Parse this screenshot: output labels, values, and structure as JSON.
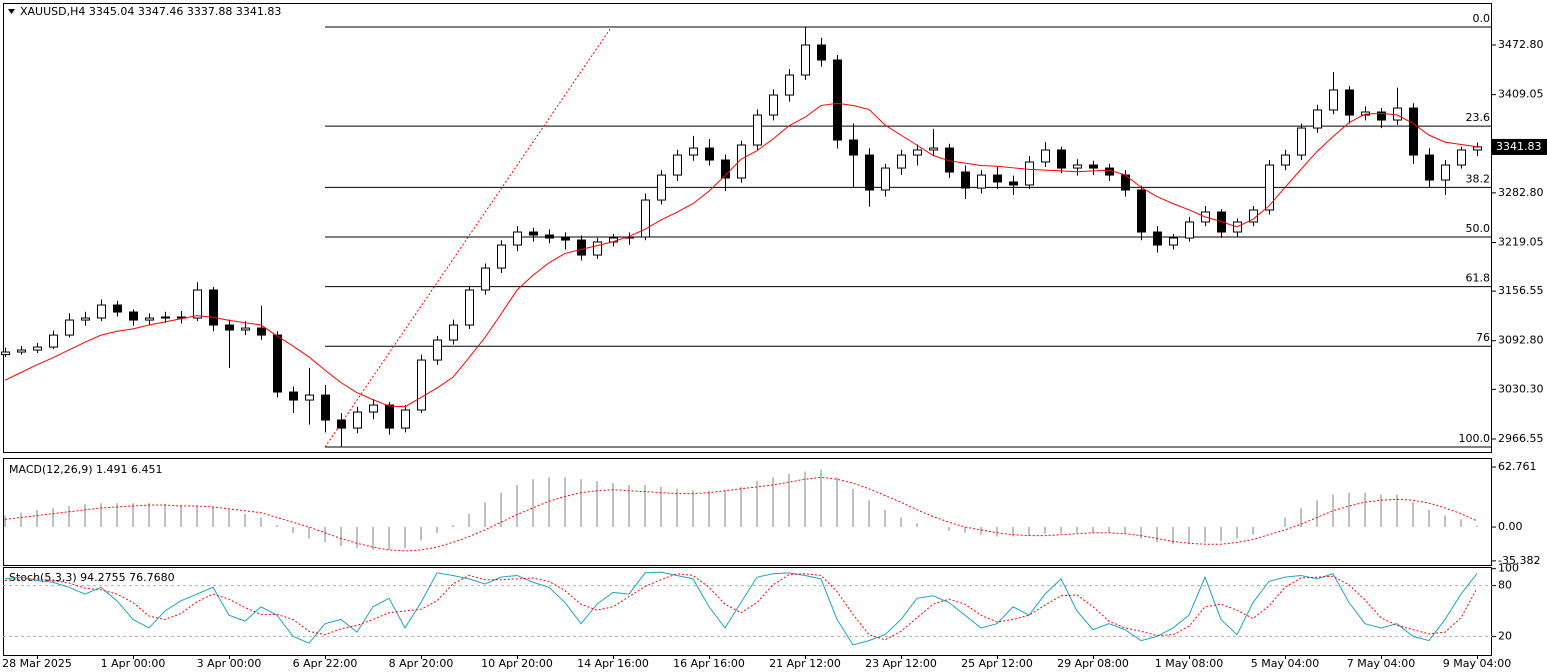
{
  "chart_data": [
    {
      "type": "candlestick",
      "title": "XAUUSD,H4  3345.04 3347.46 3337.88 3341.83",
      "categories": [
        null,
        null,
        "28 Mar 2025",
        null,
        null,
        null,
        null,
        null,
        "1 Apr 00:00",
        null,
        null,
        null,
        null,
        null,
        "3 Apr 00:00",
        null,
        null,
        null,
        null,
        null,
        "6 Apr 22:00",
        null,
        null,
        null,
        null,
        null,
        "8 Apr 20:00",
        null,
        null,
        null,
        null,
        null,
        "10 Apr 20:00",
        null,
        null,
        null,
        null,
        null,
        "14 Apr 16:00",
        null,
        null,
        null,
        null,
        null,
        "16 Apr 16:00",
        null,
        null,
        null,
        null,
        null,
        "21 Apr 12:00",
        null,
        null,
        null,
        null,
        null,
        "23 Apr 12:00",
        null,
        null,
        null,
        null,
        null,
        "25 Apr 12:00",
        null,
        null,
        null,
        null,
        null,
        "29 Apr 08:00",
        null,
        null,
        null,
        null,
        null,
        "1 May 08:00",
        null,
        null,
        null,
        null,
        null,
        "5 May 04:00",
        null,
        null,
        null,
        null,
        null,
        "7 May 04:00",
        null,
        null,
        null,
        null,
        null,
        "9 May 04:00"
      ],
      "candles": [
        [
          3075,
          3084,
          3072,
          3078.3
        ],
        [
          3078.3,
          3086,
          3075,
          3080.9
        ],
        [
          3080.9,
          3090,
          3077,
          3084.7
        ],
        [
          3084.7,
          3106,
          3082,
          3100.1
        ],
        [
          3100.1,
          3128,
          3097,
          3119.4
        ],
        [
          3119.4,
          3130,
          3112,
          3122.0
        ],
        [
          3122.0,
          3146,
          3118,
          3138.7
        ],
        [
          3138.7,
          3144,
          3124,
          3129.7
        ],
        [
          3129.7,
          3133,
          3112,
          3119.4
        ],
        [
          3119.4,
          3128,
          3113,
          3122.0
        ],
        [
          3122.0,
          3130,
          3116,
          3123.3
        ],
        [
          3123.3,
          3131,
          3115,
          3122.0
        ],
        [
          3122.0,
          3168,
          3118,
          3158.0
        ],
        [
          3158.0,
          3162,
          3105,
          3113.0
        ],
        [
          3113.0,
          3120,
          3058,
          3106.6
        ],
        [
          3106.6,
          3118,
          3100,
          3109.1
        ],
        [
          3109.1,
          3138,
          3094,
          3100.1
        ],
        [
          3100.1,
          3105,
          3020,
          3026.9
        ],
        [
          3026.9,
          3034,
          3000,
          3016.6
        ],
        [
          3016.6,
          3058,
          2985,
          3023.0
        ],
        [
          3023.0,
          3036,
          2975,
          2990.9
        ],
        [
          2990.9,
          3000,
          2957,
          2980.6
        ],
        [
          2980.6,
          3008,
          2974,
          3001.2
        ],
        [
          3001.2,
          3018,
          2992,
          3010.2
        ],
        [
          3010.2,
          3014,
          2972,
          2980.6
        ],
        [
          2980.6,
          3010,
          2975,
          3003.8
        ],
        [
          3003.8,
          3075,
          3000,
          3068.0
        ],
        [
          3068.0,
          3099,
          3062,
          3093.7
        ],
        [
          3093.7,
          3120,
          3088,
          3113.0
        ],
        [
          3113.0,
          3162,
          3108,
          3158.0
        ],
        [
          3158.0,
          3192,
          3152,
          3186.2
        ],
        [
          3186.2,
          3222,
          3180,
          3215.8
        ],
        [
          3215.8,
          3240,
          3208,
          3232.5
        ],
        [
          3232.5,
          3238,
          3220,
          3228.6
        ],
        [
          3228.6,
          3236,
          3218,
          3224.8
        ],
        [
          3224.8,
          3232,
          3210,
          3222.2
        ],
        [
          3222.2,
          3228,
          3196,
          3202.9
        ],
        [
          3202.9,
          3225,
          3198,
          3219.7
        ],
        [
          3219.7,
          3230,
          3214,
          3224.8
        ],
        [
          3224.8,
          3232,
          3216,
          3226.1
        ],
        [
          3226.1,
          3282,
          3222,
          3273.6
        ],
        [
          3273.6,
          3312,
          3268,
          3305.7
        ],
        [
          3305.7,
          3338,
          3298,
          3331.4
        ],
        [
          3331.4,
          3356,
          3324,
          3340.4
        ],
        [
          3340.4,
          3352,
          3318,
          3325.0
        ],
        [
          3325.0,
          3332,
          3285,
          3301.9
        ],
        [
          3301.9,
          3350,
          3296,
          3344.3
        ],
        [
          3344.3,
          3390,
          3338,
          3382.8
        ],
        [
          3382.8,
          3416,
          3376,
          3408.5
        ],
        [
          3408.5,
          3442,
          3400,
          3434.2
        ],
        [
          3434.2,
          3496,
          3428,
          3472.8
        ],
        [
          3472.8,
          3482,
          3445,
          3453.5
        ],
        [
          3453.5,
          3460,
          3340,
          3350.7
        ],
        [
          3350.7,
          3372,
          3290,
          3331.4
        ],
        [
          3331.4,
          3340,
          3265,
          3286.5
        ],
        [
          3286.5,
          3320,
          3278,
          3314.7
        ],
        [
          3314.7,
          3338,
          3306,
          3331.4
        ],
        [
          3331.4,
          3345,
          3318,
          3337.9
        ],
        [
          3337.9,
          3365,
          3330,
          3340.4
        ],
        [
          3340.4,
          3346,
          3302,
          3309.6
        ],
        [
          3309.6,
          3318,
          3275,
          3289.0
        ],
        [
          3289.0,
          3312,
          3282,
          3305.7
        ],
        [
          3305.7,
          3316,
          3288,
          3296.8
        ],
        [
          3296.8,
          3305,
          3280,
          3292.9
        ],
        [
          3292.9,
          3330,
          3288,
          3322.5
        ],
        [
          3322.5,
          3348,
          3316,
          3337.9
        ],
        [
          3337.9,
          3342,
          3308,
          3314.7
        ],
        [
          3314.7,
          3326,
          3305,
          3318.6
        ],
        [
          3318.6,
          3324,
          3306,
          3314.7
        ],
        [
          3314.7,
          3320,
          3298,
          3305.7
        ],
        [
          3305.7,
          3312,
          3278,
          3286.5
        ],
        [
          3286.5,
          3292,
          3222,
          3232.5
        ],
        [
          3232.5,
          3240,
          3206,
          3215.8
        ],
        [
          3215.8,
          3230,
          3210,
          3224.8
        ],
        [
          3224.8,
          3252,
          3220,
          3245.4
        ],
        [
          3245.4,
          3266,
          3240,
          3258.2
        ],
        [
          3258.2,
          3262,
          3225,
          3232.5
        ],
        [
          3232.5,
          3250,
          3226,
          3245.4
        ],
        [
          3245.4,
          3266,
          3240,
          3260.8
        ],
        [
          3260.8,
          3325,
          3255,
          3318.6
        ],
        [
          3318.6,
          3338,
          3312,
          3331.4
        ],
        [
          3331.4,
          3372,
          3325,
          3366.1
        ],
        [
          3366.1,
          3396,
          3360,
          3389.3
        ],
        [
          3389.3,
          3438,
          3384,
          3415.0
        ],
        [
          3415.0,
          3420,
          3372,
          3382.8
        ],
        [
          3382.8,
          3394,
          3376,
          3386.7
        ],
        [
          3386.7,
          3392,
          3366,
          3376.4
        ],
        [
          3376.4,
          3418,
          3370,
          3391.8
        ],
        [
          3391.8,
          3398,
          3320,
          3331.4
        ],
        [
          3331.4,
          3340,
          3290,
          3299.3
        ],
        [
          3299.3,
          3325,
          3280,
          3318.6
        ],
        [
          3318.6,
          3342,
          3314,
          3337.9
        ],
        [
          3337.9,
          3347.46,
          3330,
          3341.83
        ]
      ],
      "ma": {
        "color": "#ff0000",
        "values": [
          3042,
          3052,
          3062,
          3071,
          3081,
          3091,
          3100,
          3105,
          3108,
          3113,
          3117,
          3121,
          3125,
          3123,
          3119,
          3116,
          3113,
          3099,
          3086,
          3072,
          3055,
          3039,
          3026,
          3017,
          3009,
          3008,
          3020,
          3032,
          3046,
          3071,
          3097,
          3127,
          3158,
          3177,
          3193,
          3205,
          3210,
          3215,
          3220,
          3227,
          3236,
          3248,
          3258,
          3269,
          3285,
          3305,
          3326,
          3337,
          3352,
          3369,
          3380,
          3395,
          3398,
          3395,
          3390,
          3370,
          3357,
          3344,
          3331,
          3324,
          3321,
          3318,
          3317,
          3315,
          3313,
          3312,
          3311,
          3310,
          3311,
          3312,
          3306,
          3290,
          3278,
          3269,
          3261,
          3252,
          3246,
          3239,
          3249,
          3266,
          3290,
          3313,
          3336,
          3355,
          3373,
          3384,
          3385,
          3383,
          3372,
          3357,
          3348,
          3345,
          3342
        ]
      },
      "fib_levels": [
        {
          "value": 3495.9,
          "label": "0.0"
        },
        {
          "value": 3368.6,
          "label": "23.6"
        },
        {
          "value": 3289.8,
          "label": "38.2"
        },
        {
          "value": 3226.1,
          "label": "50.0"
        },
        {
          "value": 3162.4,
          "label": "61.8"
        },
        {
          "value": 3085.8,
          "label": "76"
        },
        {
          "value": 2956.3,
          "label": "100.0"
        }
      ],
      "trendline": {
        "color": "#ff0000",
        "x": [
          20,
          37.9
        ],
        "y": [
          2956.3,
          3495.9
        ]
      },
      "current_price": 3341.83,
      "ylim": [
        2949.85,
        3524.2
      ],
      "yticks": [
        {
          "value": 3472.8,
          "label": "3472.80"
        },
        3409.05,
        {
          "value": 3282.8,
          "label": "3282.80"
        },
        3219.05,
        3156.55,
        {
          "value": 3092.8,
          "label": "3092.80"
        },
        {
          "value": 3030.3,
          "label": "3030.30"
        },
        2966.55
      ]
    },
    {
      "type": "bar",
      "title": "MACD(12,26,9) 1.491 6.451",
      "color": "#c0c0c0",
      "values": [
        12,
        15,
        18,
        20,
        22,
        24,
        25,
        25,
        25,
        25,
        24,
        23,
        22,
        21,
        18,
        14,
        10,
        2,
        -6,
        -12,
        -16,
        -20,
        -22,
        -24,
        -24,
        -22,
        -14,
        -6,
        2,
        14,
        26,
        36,
        44,
        50,
        52,
        52,
        50,
        48,
        46,
        44,
        44,
        42,
        40,
        38,
        38,
        38,
        42,
        48,
        52,
        56,
        58,
        60,
        52,
        40,
        28,
        18,
        10,
        4,
        0,
        -4,
        -6,
        -8,
        -10,
        -10,
        -9,
        -7,
        -7,
        -6,
        -6,
        -6,
        -7,
        -12,
        -16,
        -18,
        -18,
        -16,
        -15,
        -12,
        -8,
        0,
        10,
        20,
        28,
        34,
        36,
        36,
        34,
        34,
        26,
        18,
        12,
        8,
        1.491
      ],
      "signal": {
        "color": "#ff0000",
        "values": [
          8,
          10,
          12,
          14,
          16,
          18,
          20,
          21,
          22,
          23,
          23,
          22,
          22,
          21,
          19,
          17,
          15,
          10,
          5,
          0,
          -6,
          -12,
          -17,
          -21,
          -24,
          -25,
          -24,
          -21,
          -16,
          -10,
          -3,
          5,
          13,
          20,
          27,
          32,
          36,
          38,
          39,
          38,
          37,
          36,
          35,
          35,
          36,
          38,
          40,
          42,
          44,
          47,
          50,
          52,
          50,
          46,
          40,
          33,
          26,
          18,
          11,
          5,
          0,
          -3,
          -6,
          -8,
          -9,
          -9,
          -8,
          -7,
          -6,
          -6,
          -7,
          -9,
          -12,
          -15,
          -17,
          -18,
          -18,
          -16,
          -13,
          -8,
          -3,
          3,
          10,
          17,
          22,
          26,
          28,
          29,
          28,
          25,
          20,
          14,
          6.451
        ]
      },
      "ylim": [
        -39.7,
        72.2
      ],
      "yticks": [
        62.761,
        {
          "value": 0,
          "label": "0.00"
        },
        -35.382
      ]
    },
    {
      "type": "line",
      "title": "Stoch(5,3,3) 94.2755 76.7680",
      "series": [
        {
          "color": "#1fa3c4",
          "values": [
            88,
            90,
            86,
            84,
            78,
            70,
            78,
            62,
            40,
            30,
            50,
            62,
            70,
            78,
            45,
            38,
            55,
            45,
            20,
            12,
            35,
            40,
            25,
            55,
            65,
            30,
            60,
            95,
            92,
            88,
            82,
            90,
            92,
            84,
            78,
            60,
            35,
            58,
            72,
            70,
            95,
            96,
            92,
            88,
            55,
            30,
            60,
            90,
            94,
            95,
            92,
            88,
            40,
            10,
            15,
            22,
            40,
            65,
            68,
            60,
            45,
            30,
            35,
            55,
            45,
            70,
            88,
            50,
            28,
            35,
            28,
            15,
            20,
            30,
            45,
            90,
            40,
            22,
            60,
            85,
            90,
            92,
            88,
            94,
            60,
            35,
            30,
            35,
            20,
            15,
            40,
            70,
            94.2755
          ]
        },
        {
          "color": "#ff0000",
          "dash": true,
          "values": [
            86,
            88,
            88,
            86,
            83,
            77,
            75,
            70,
            60,
            44,
            40,
            47,
            61,
            70,
            64,
            54,
            46,
            46,
            40,
            26,
            22,
            29,
            33,
            40,
            48,
            50,
            52,
            62,
            82,
            92,
            87,
            87,
            88,
            89,
            85,
            74,
            58,
            51,
            55,
            67,
            79,
            87,
            94,
            92,
            78,
            58,
            48,
            60,
            81,
            93,
            94,
            92,
            73,
            46,
            22,
            16,
            26,
            42,
            58,
            64,
            58,
            45,
            37,
            40,
            45,
            57,
            68,
            69,
            55,
            38,
            30,
            26,
            21,
            22,
            32,
            55,
            58,
            51,
            41,
            56,
            78,
            89,
            90,
            91,
            81,
            63,
            42,
            33,
            28,
            23,
            25,
            42,
            76.768
          ]
        }
      ],
      "levels": [
        80,
        20
      ],
      "ylim": [
        -2,
        102
      ],
      "yticks": [
        100,
        80,
        20
      ]
    }
  ]
}
